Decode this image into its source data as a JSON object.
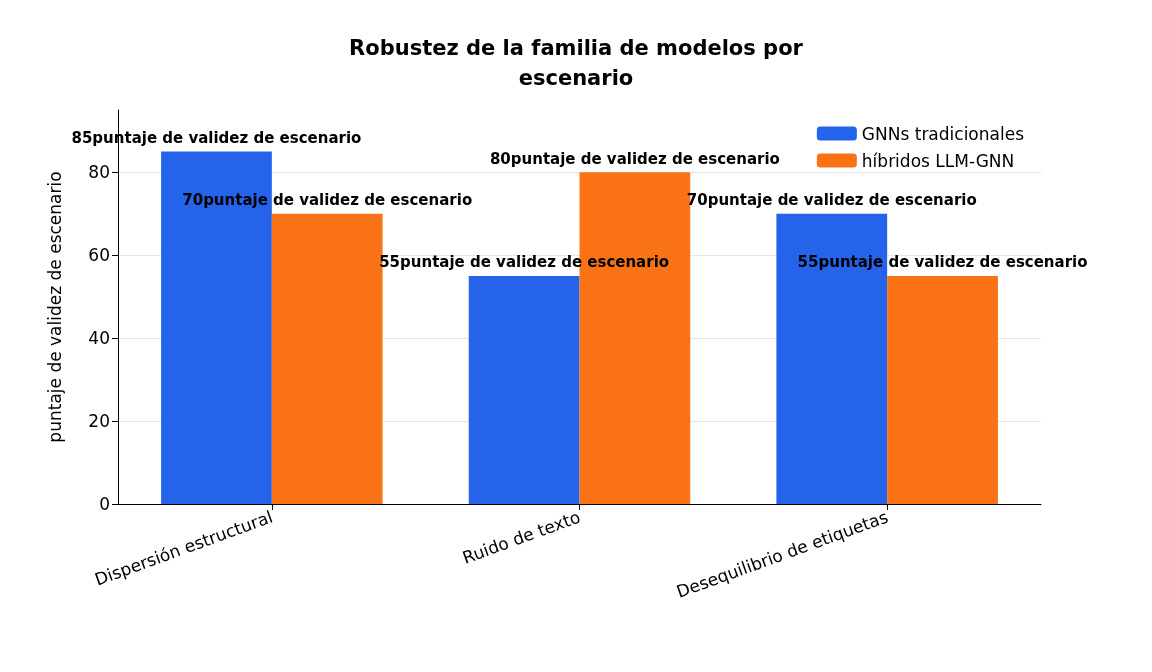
{
  "chart_data": {
    "type": "bar",
    "title": "Robustez de la familia de modelos por\nescenario",
    "ylabel": "puntaje de validez de escenario",
    "categories": [
      "Dispersión estructural",
      "Ruido de texto",
      "Desequilibrio de etiquetas"
    ],
    "series": [
      {
        "name": "GNNs tradicionales",
        "color": "#2563eb",
        "values": [
          85,
          55,
          70
        ],
        "value_labels": [
          "85puntaje de validez de escenario",
          "55puntaje de validez de escenario",
          "70puntaje de validez de escenario"
        ]
      },
      {
        "name": "híbridos LLM-GNN",
        "color": "#f97316",
        "values": [
          70,
          80,
          55
        ],
        "value_labels": [
          "70puntaje de validez de escenario",
          "80puntaje de validez de escenario",
          "55puntaje de validez de escenario"
        ]
      }
    ],
    "ylim": [
      0,
      95
    ],
    "yticks": [
      0,
      20,
      40,
      60,
      80
    ],
    "grid": "y",
    "legend": "top right"
  }
}
